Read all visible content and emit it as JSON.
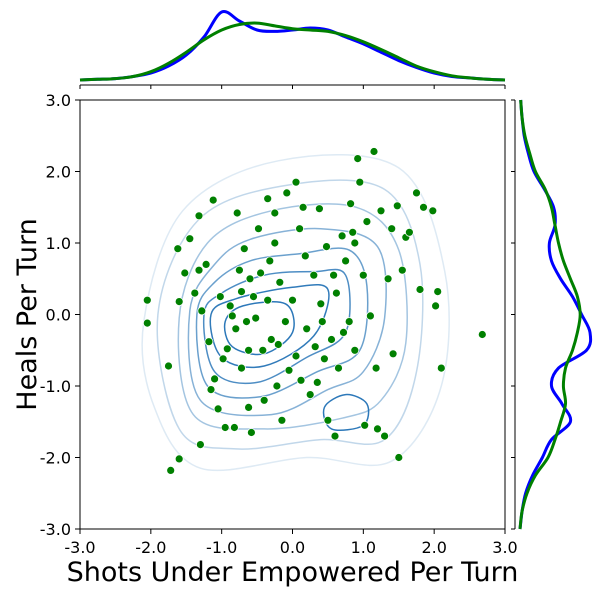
{
  "chart_data": {
    "type": "scatter",
    "xlabel": "Shots Under Empowered Per Turn",
    "ylabel": "Heals Per Turn",
    "xlim": [
      -3.0,
      3.0
    ],
    "ylim": [
      -3.0,
      3.0
    ],
    "x_ticks": [
      "-3.0",
      "-2.0",
      "-1.0",
      "0.0",
      "1.0",
      "2.0",
      "3.0"
    ],
    "y_ticks": [
      "-3.0",
      "-2.0",
      "-1.0",
      "0.0",
      "1.0",
      "2.0",
      "3.0"
    ],
    "grid": false,
    "point_color": "#008000",
    "contour_color": "#2171b5",
    "marginal_colors": [
      "#0000ff",
      "#008000"
    ],
    "points": [
      [
        -2.05,
        0.2
      ],
      [
        -2.05,
        -0.12
      ],
      [
        -1.75,
        -0.72
      ],
      [
        -1.72,
        -2.18
      ],
      [
        -1.6,
        -2.02
      ],
      [
        -1.62,
        0.92
      ],
      [
        -1.6,
        0.18
      ],
      [
        -1.52,
        0.58
      ],
      [
        -1.45,
        1.06
      ],
      [
        -1.38,
        0.3
      ],
      [
        -1.32,
        1.38
      ],
      [
        -1.32,
        0.62
      ],
      [
        -1.3,
        -1.82
      ],
      [
        -1.28,
        0.05
      ],
      [
        -1.22,
        0.7
      ],
      [
        -1.18,
        -0.38
      ],
      [
        -1.12,
        1.6
      ],
      [
        -1.1,
        -0.9
      ],
      [
        -1.05,
        -1.32
      ],
      [
        -1.02,
        0.25
      ],
      [
        -0.98,
        -0.62
      ],
      [
        -0.95,
        -1.58
      ],
      [
        -0.92,
        -0.48
      ],
      [
        -0.88,
        0.12
      ],
      [
        -0.85,
        -0.02
      ],
      [
        -0.82,
        -1.58
      ],
      [
        -0.8,
        -0.2
      ],
      [
        -0.75,
        0.62
      ],
      [
        -0.72,
        -0.75
      ],
      [
        -0.68,
        0.92
      ],
      [
        -0.65,
        -0.1
      ],
      [
        -0.62,
        -1.3
      ],
      [
        -0.6,
        0.5
      ],
      [
        -0.58,
        -1.65
      ],
      [
        -0.55,
        0.25
      ],
      [
        -0.52,
        -0.05
      ],
      [
        -0.48,
        1.2
      ],
      [
        -0.45,
        0.58
      ],
      [
        -0.42,
        -0.5
      ],
      [
        -0.4,
        -1.2
      ],
      [
        -0.35,
        0.2
      ],
      [
        -0.32,
        0.75
      ],
      [
        -0.3,
        -0.35
      ],
      [
        -0.25,
        1.0
      ],
      [
        -0.22,
        -1.0
      ],
      [
        -0.2,
        -0.42
      ],
      [
        -0.18,
        0.45
      ],
      [
        -0.15,
        -1.48
      ],
      [
        -0.1,
        -0.1
      ],
      [
        -0.08,
        1.7
      ],
      [
        -0.05,
        -0.78
      ],
      [
        0.0,
        0.2
      ],
      [
        0.05,
        -0.58
      ],
      [
        0.1,
        1.2
      ],
      [
        0.12,
        -0.92
      ],
      [
        0.15,
        1.5
      ],
      [
        0.18,
        0.82
      ],
      [
        0.2,
        -0.2
      ],
      [
        0.25,
        -1.12
      ],
      [
        0.3,
        0.55
      ],
      [
        0.32,
        -0.45
      ],
      [
        0.35,
        -0.95
      ],
      [
        0.4,
        0.15
      ],
      [
        0.42,
        -0.1
      ],
      [
        0.45,
        -0.62
      ],
      [
        0.48,
        0.95
      ],
      [
        0.5,
        -1.48
      ],
      [
        0.55,
        -0.35
      ],
      [
        0.58,
        0.55
      ],
      [
        0.62,
        0.3
      ],
      [
        0.65,
        -0.75
      ],
      [
        0.7,
        1.1
      ],
      [
        0.72,
        -0.25
      ],
      [
        0.75,
        0.75
      ],
      [
        0.8,
        -0.1
      ],
      [
        0.82,
        1.55
      ],
      [
        0.85,
        1.15
      ],
      [
        0.88,
        -0.5
      ],
      [
        0.92,
        2.18
      ],
      [
        0.95,
        1.85
      ],
      [
        1.0,
        0.55
      ],
      [
        1.02,
        -1.55
      ],
      [
        1.05,
        1.3
      ],
      [
        1.1,
        -0.02
      ],
      [
        1.15,
        2.28
      ],
      [
        1.2,
        -1.6
      ],
      [
        1.25,
        1.45
      ],
      [
        1.3,
        -1.7
      ],
      [
        1.35,
        0.5
      ],
      [
        1.4,
        1.2
      ],
      [
        1.42,
        -0.55
      ],
      [
        1.48,
        1.52
      ],
      [
        1.5,
        -2.0
      ],
      [
        1.55,
        0.62
      ],
      [
        1.6,
        1.08
      ],
      [
        1.65,
        1.15
      ],
      [
        1.75,
        1.7
      ],
      [
        1.8,
        0.35
      ],
      [
        1.85,
        1.5
      ],
      [
        1.98,
        1.45
      ],
      [
        2.02,
        0.12
      ],
      [
        2.05,
        0.32
      ],
      [
        2.1,
        -0.75
      ],
      [
        2.68,
        -0.28
      ],
      [
        -0.78,
        1.42
      ],
      [
        0.05,
        1.85
      ],
      [
        -0.35,
        1.62
      ],
      [
        0.88,
        1.0
      ],
      [
        -1.15,
        -1.05
      ],
      [
        0.6,
        -1.7
      ],
      [
        -0.62,
        -0.5
      ],
      [
        1.18,
        -0.75
      ],
      [
        -0.25,
        1.42
      ],
      [
        0.38,
        1.48
      ],
      [
        -0.72,
        0.32
      ]
    ],
    "marginal_x": {
      "grid": [
        -3.0,
        -2.75,
        -2.5,
        -2.25,
        -2.0,
        -1.75,
        -1.5,
        -1.25,
        -1.0,
        -0.75,
        -0.5,
        -0.25,
        0.0,
        0.25,
        0.5,
        0.75,
        1.0,
        1.25,
        1.5,
        1.75,
        2.0,
        2.25,
        2.5,
        2.75,
        3.0
      ],
      "series": [
        {
          "values": [
            0.0,
            0.01,
            0.02,
            0.05,
            0.1,
            0.2,
            0.36,
            0.62,
            0.98,
            0.85,
            0.72,
            0.7,
            0.72,
            0.75,
            0.72,
            0.62,
            0.52,
            0.4,
            0.28,
            0.18,
            0.1,
            0.05,
            0.03,
            0.01,
            0.0
          ]
        },
        {
          "values": [
            0.0,
            0.01,
            0.02,
            0.05,
            0.12,
            0.24,
            0.4,
            0.58,
            0.72,
            0.8,
            0.82,
            0.78,
            0.74,
            0.72,
            0.7,
            0.64,
            0.55,
            0.44,
            0.32,
            0.2,
            0.12,
            0.06,
            0.03,
            0.01,
            0.0
          ]
        }
      ]
    },
    "marginal_y": {
      "grid": [
        -3.0,
        -2.75,
        -2.5,
        -2.25,
        -2.0,
        -1.75,
        -1.5,
        -1.25,
        -1.0,
        -0.75,
        -0.5,
        -0.25,
        0.0,
        0.25,
        0.5,
        0.75,
        1.0,
        1.25,
        1.5,
        1.75,
        2.0,
        2.25,
        2.5,
        2.75,
        3.0
      ],
      "series": [
        {
          "values": [
            0.0,
            0.03,
            0.08,
            0.18,
            0.32,
            0.45,
            0.72,
            0.6,
            0.45,
            0.55,
            0.95,
            1.0,
            0.88,
            0.75,
            0.58,
            0.45,
            0.42,
            0.5,
            0.48,
            0.35,
            0.2,
            0.12,
            0.06,
            0.03,
            0.01
          ]
        },
        {
          "values": [
            0.0,
            0.03,
            0.1,
            0.22,
            0.4,
            0.5,
            0.58,
            0.65,
            0.62,
            0.65,
            0.75,
            0.82,
            0.86,
            0.82,
            0.72,
            0.62,
            0.55,
            0.5,
            0.45,
            0.36,
            0.22,
            0.14,
            0.07,
            0.03,
            0.01
          ]
        }
      ]
    },
    "contours": [
      [
        [
          -2.1,
          -0.1
        ],
        [
          -1.95,
          -1.3
        ],
        [
          -1.3,
          -2.15
        ],
        [
          0.2,
          -2.0
        ],
        [
          1.4,
          -2.05
        ],
        [
          2.1,
          -1.0
        ],
        [
          2.15,
          0.6
        ],
        [
          1.5,
          2.05
        ],
        [
          -0.2,
          2.15
        ],
        [
          -1.55,
          1.45
        ]
      ],
      [
        [
          -1.9,
          0.0
        ],
        [
          -1.6,
          -1.6
        ],
        [
          -0.8,
          -1.88
        ],
        [
          0.4,
          -1.75
        ],
        [
          1.3,
          -1.75
        ],
        [
          1.75,
          -0.8
        ],
        [
          1.8,
          0.7
        ],
        [
          1.3,
          1.75
        ],
        [
          0.0,
          1.82
        ],
        [
          -1.3,
          1.35
        ]
      ],
      [
        [
          -1.6,
          -0.05
        ],
        [
          -1.4,
          -1.4
        ],
        [
          -0.4,
          -1.6
        ],
        [
          0.7,
          -1.45
        ],
        [
          1.25,
          -1.2
        ],
        [
          1.6,
          -0.4
        ],
        [
          1.5,
          0.9
        ],
        [
          0.9,
          1.5
        ],
        [
          -0.3,
          1.45
        ],
        [
          -1.2,
          1.0
        ]
      ],
      [
        [
          -1.45,
          0.05
        ],
        [
          -1.3,
          -1.2
        ],
        [
          -0.3,
          -1.4
        ],
        [
          0.5,
          -1.05
        ],
        [
          1.0,
          -0.8
        ],
        [
          1.3,
          -0.05
        ],
        [
          1.2,
          0.95
        ],
        [
          0.4,
          1.2
        ],
        [
          -0.6,
          1.05
        ],
        [
          -1.1,
          0.7
        ]
      ],
      [
        [
          -1.35,
          0.0
        ],
        [
          -1.2,
          -1.0
        ],
        [
          -0.45,
          -1.15
        ],
        [
          0.35,
          -0.8
        ],
        [
          0.95,
          -0.5
        ],
        [
          1.05,
          0.4
        ],
        [
          0.8,
          0.9
        ],
        [
          0.1,
          0.85
        ],
        [
          -0.6,
          0.75
        ],
        [
          -1.1,
          0.45
        ]
      ],
      [
        [
          -1.25,
          0.0
        ],
        [
          -1.1,
          -0.8
        ],
        [
          -0.5,
          -0.95
        ],
        [
          0.2,
          -0.6
        ],
        [
          0.75,
          -0.25
        ],
        [
          0.75,
          0.55
        ],
        [
          0.3,
          0.6
        ],
        [
          -0.4,
          0.55
        ],
        [
          -1.0,
          0.3
        ]
      ],
      [
        [
          -1.15,
          0.0
        ],
        [
          -1.0,
          -0.6
        ],
        [
          -0.4,
          -0.72
        ],
        [
          0.3,
          -0.3
        ],
        [
          0.5,
          0.35
        ],
        [
          0.0,
          0.38
        ],
        [
          -0.8,
          0.22
        ]
      ],
      [
        [
          -0.95,
          -0.1
        ],
        [
          -0.85,
          -0.45
        ],
        [
          -0.4,
          -0.55
        ],
        [
          0.0,
          -0.25
        ],
        [
          -0.1,
          0.15
        ],
        [
          -0.7,
          0.12
        ]
      ],
      [
        [
          0.45,
          -1.3
        ],
        [
          0.55,
          -1.6
        ],
        [
          1.0,
          -1.55
        ],
        [
          1.05,
          -1.25
        ],
        [
          0.75,
          -1.12
        ]
      ]
    ]
  }
}
